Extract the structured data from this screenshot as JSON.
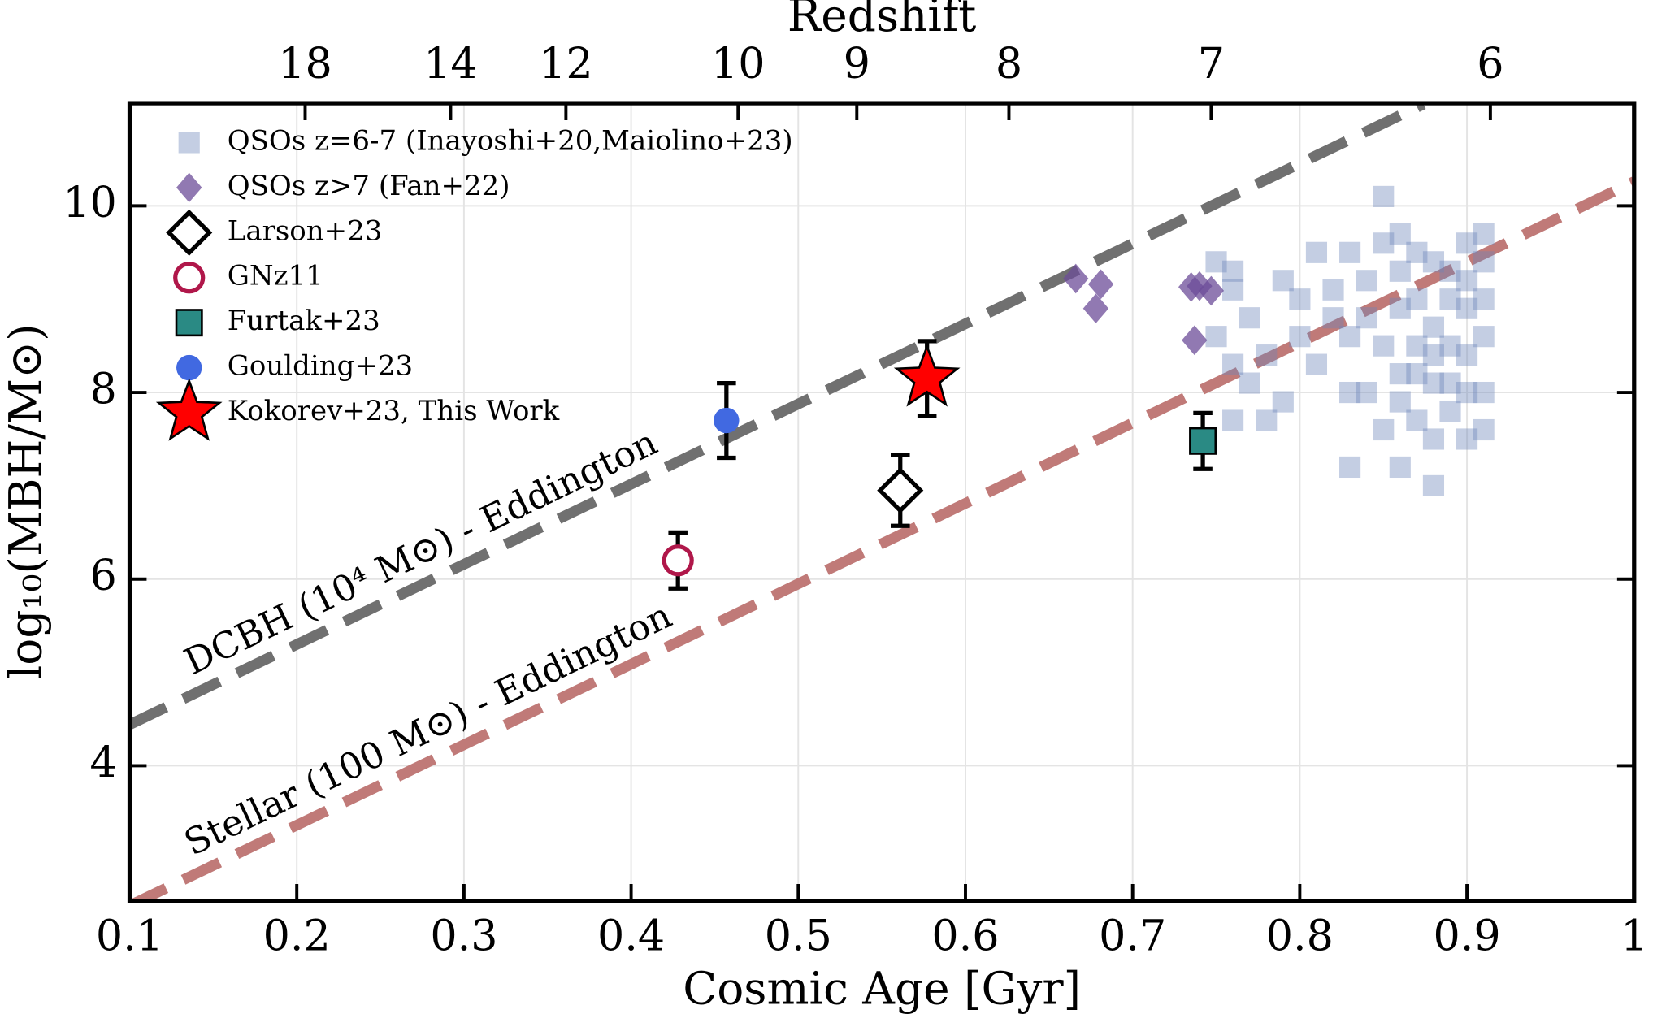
{
  "chart_data": {
    "type": "scatter",
    "xlabel": "Cosmic Age [Gyr]",
    "ylabel": "log₁₀(MBH/M⊙)",
    "x2label": "Redshift",
    "xlim": [
      0.1,
      1.0
    ],
    "xticks": [
      0.1,
      0.2,
      0.3,
      0.4,
      0.5,
      0.6,
      0.7,
      0.8,
      0.9,
      1.0
    ],
    "ylim": [
      2.55,
      11.1
    ],
    "yticks": [
      4,
      6,
      8,
      10
    ],
    "x2ticks": [
      {
        "value": 0.205,
        "label": "18"
      },
      {
        "value": 0.292,
        "label": "14"
      },
      {
        "value": 0.361,
        "label": "12"
      },
      {
        "value": 0.464,
        "label": "10"
      },
      {
        "value": 0.535,
        "label": "9"
      },
      {
        "value": 0.626,
        "label": "8"
      },
      {
        "value": 0.747,
        "label": "7"
      },
      {
        "value": 0.914,
        "label": "6"
      }
    ],
    "grid": true,
    "legend": "upper left",
    "lines": [
      {
        "label": "DCBH (10⁴ M⊙) - Eddington",
        "color": "#707070",
        "label_color": "#000000",
        "x": [
          0.1,
          0.874
        ],
        "values": [
          4.44,
          11.09
        ]
      },
      {
        "label": "Stellar (100 M⊙) - Eddington",
        "color": "#c07a78",
        "label_color": "#7a1010",
        "x": [
          0.1,
          1.0
        ],
        "values": [
          2.5,
          10.26
        ]
      }
    ],
    "series": [
      {
        "name": "QSOs z=6-7 (Inayoshi+20,Maiolino+23)",
        "marker": "square",
        "color": "#6b84b8",
        "x": [
          0.76,
          0.76,
          0.77,
          0.78,
          0.77,
          0.75,
          0.79,
          0.8,
          0.8,
          0.81,
          0.79,
          0.78,
          0.76,
          0.82,
          0.83,
          0.84,
          0.84,
          0.83,
          0.85,
          0.85,
          0.86,
          0.86,
          0.85,
          0.86,
          0.84,
          0.83,
          0.86,
          0.87,
          0.87,
          0.88,
          0.88,
          0.88,
          0.89,
          0.89,
          0.89,
          0.89,
          0.88,
          0.9,
          0.9,
          0.9,
          0.9,
          0.91,
          0.91,
          0.91,
          0.91,
          0.91,
          0.91,
          0.87,
          0.86,
          0.88,
          0.88,
          0.87,
          0.82,
          0.81,
          0.83,
          0.85,
          0.9,
          0.89,
          0.9,
          0.87,
          0.86,
          0.75,
          0.76
        ],
        "values": [
          9.3,
          9.1,
          8.8,
          8.4,
          8.1,
          8.6,
          9.2,
          9.0,
          8.6,
          8.3,
          7.9,
          7.7,
          7.7,
          9.1,
          9.5,
          9.2,
          8.8,
          8.6,
          9.6,
          10.1,
          9.7,
          9.3,
          8.5,
          8.2,
          8.0,
          7.2,
          7.2,
          9.5,
          9.0,
          9.4,
          8.7,
          8.4,
          9.3,
          9.0,
          8.1,
          7.8,
          7.5,
          9.6,
          9.2,
          8.9,
          8.0,
          9.7,
          9.4,
          9.0,
          8.6,
          7.6,
          8.0,
          7.7,
          7.9,
          7.0,
          8.1,
          8.5,
          8.8,
          9.5,
          8.0,
          7.6,
          7.5,
          8.5,
          8.4,
          8.2,
          8.9,
          9.4,
          8.3
        ]
      },
      {
        "name": "QSOs z>7 (Fan+22)",
        "marker": "diamond",
        "color": "#6c4c98",
        "x": [
          0.666,
          0.681,
          0.678,
          0.735,
          0.74,
          0.747,
          0.737
        ],
        "values": [
          9.22,
          9.16,
          8.9,
          9.13,
          9.14,
          9.09,
          8.56
        ]
      },
      {
        "name": "Larson+23",
        "marker": "open-diamond",
        "color": "#000000",
        "x": [
          0.561
        ],
        "values": [
          6.95
        ],
        "errors": [
          0.38
        ]
      },
      {
        "name": "GNz11",
        "marker": "open-circle",
        "color": "#b0174a",
        "x": [
          0.428
        ],
        "values": [
          6.2
        ],
        "errors": [
          0.3
        ]
      },
      {
        "name": "Furtak+23",
        "marker": "edge-square",
        "color": "#2a8a84",
        "x": [
          0.742
        ],
        "values": [
          7.48
        ],
        "errors": [
          0.3
        ]
      },
      {
        "name": "Goulding+23",
        "marker": "circle",
        "color": "#4169e1",
        "x": [
          0.457
        ],
        "values": [
          7.7
        ],
        "errors": [
          0.4
        ]
      },
      {
        "name": "Kokorev+23, This Work",
        "marker": "star",
        "color": "#ff0000",
        "x": [
          0.577
        ],
        "values": [
          8.15
        ],
        "errors": [
          0.4
        ]
      }
    ]
  }
}
